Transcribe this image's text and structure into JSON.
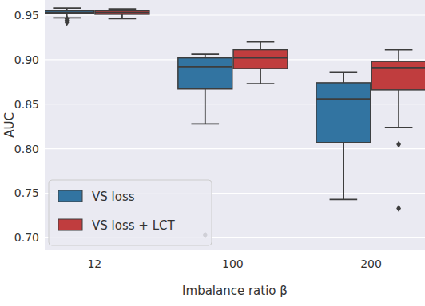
{
  "chart_data": {
    "type": "box",
    "x_label": "Imbalance ratio β",
    "y_label": "AUC",
    "categories": [
      "12",
      "100",
      "200"
    ],
    "series": [
      {
        "name": "VS loss",
        "color": "#3274a1",
        "values": [
          {
            "whislo": 0.947,
            "q1": 0.952,
            "med": 0.953,
            "q3": 0.955,
            "whishi": 0.958,
            "fliers": [
              0.942,
              0.944,
              0.946
            ]
          },
          {
            "whislo": 0.828,
            "q1": 0.867,
            "med": 0.892,
            "q3": 0.902,
            "whishi": 0.906,
            "fliers": [
              0.703
            ]
          },
          {
            "whislo": 0.743,
            "q1": 0.807,
            "med": 0.856,
            "q3": 0.874,
            "whishi": 0.886,
            "fliers": []
          }
        ]
      },
      {
        "name": "VS loss + LCT",
        "color": "#c03d3e",
        "values": [
          {
            "whislo": 0.946,
            "q1": 0.951,
            "med": 0.953,
            "q3": 0.955,
            "whishi": 0.957,
            "fliers": []
          },
          {
            "whislo": 0.873,
            "q1": 0.89,
            "med": 0.902,
            "q3": 0.911,
            "whishi": 0.92,
            "fliers": []
          },
          {
            "whislo": 0.824,
            "q1": 0.866,
            "med": 0.891,
            "q3": 0.898,
            "whishi": 0.911,
            "fliers": [
              0.805,
              0.733
            ]
          }
        ]
      }
    ],
    "ylim": [
      0.686,
      0.967
    ],
    "yticks": [
      {
        "value": 0.7,
        "label": "0.70"
      },
      0.75,
      {
        "value": 0.8,
        "label": "0.80"
      },
      0.85,
      {
        "value": 0.9,
        "label": "0.90"
      },
      0.95
    ],
    "grid": true,
    "legend": "lower left",
    "marker": "diamond"
  }
}
